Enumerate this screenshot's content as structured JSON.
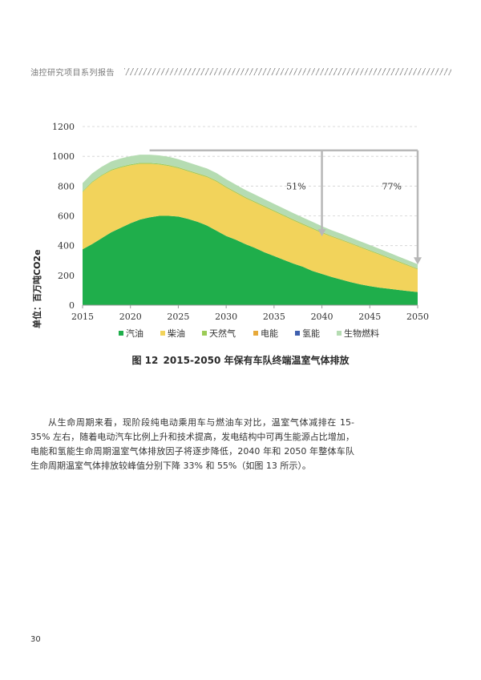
{
  "header": {
    "title": "油控研究项目系列报告"
  },
  "figure": {
    "caption_label": "图 12",
    "caption_title": "2015-2050 年保有车队终端温室气体排放"
  },
  "chart_data": {
    "type": "area",
    "stacked": true,
    "ylabel": "单位：百万吨CO2e",
    "ylim": [
      0,
      1200
    ],
    "yticks": [
      "0",
      "200",
      "400",
      "600",
      "800",
      "1000",
      "1200"
    ],
    "xlim": [
      2015,
      2050
    ],
    "xticks": [
      "2015",
      "2020",
      "2025",
      "2030",
      "2035",
      "2040",
      "2045",
      "2050"
    ],
    "grid": "horizontal dashed",
    "legend_position": "bottom",
    "x": [
      2015,
      2016,
      2017,
      2018,
      2019,
      2020,
      2021,
      2022,
      2023,
      2024,
      2025,
      2026,
      2027,
      2028,
      2029,
      2030,
      2031,
      2032,
      2033,
      2034,
      2035,
      2036,
      2037,
      2038,
      2039,
      2040,
      2041,
      2042,
      2043,
      2044,
      2045,
      2046,
      2047,
      2048,
      2049,
      2050
    ],
    "series": [
      {
        "name": "汽油",
        "color": "#1fae4b",
        "values": [
          375,
          410,
          450,
          490,
          520,
          550,
          575,
          590,
          600,
          600,
          595,
          580,
          560,
          535,
          500,
          465,
          440,
          410,
          385,
          355,
          330,
          305,
          280,
          258,
          230,
          210,
          190,
          172,
          155,
          140,
          128,
          118,
          110,
          102,
          95,
          88
        ]
      },
      {
        "name": "柴油",
        "color": "#f2d35b",
        "values": [
          385,
          415,
          420,
          415,
          405,
          390,
          375,
          360,
          345,
          335,
          325,
          320,
          320,
          325,
          330,
          325,
          315,
          310,
          305,
          305,
          300,
          295,
          290,
          283,
          283,
          275,
          270,
          265,
          258,
          248,
          236,
          222,
          205,
          188,
          170,
          152
        ]
      },
      {
        "name": "天然气",
        "color": "#9ccb57",
        "values": [
          5,
          5,
          5,
          6,
          6,
          6,
          6,
          6,
          6,
          6,
          6,
          6,
          6,
          6,
          6,
          6,
          6,
          6,
          6,
          6,
          6,
          6,
          6,
          6,
          6,
          6,
          5,
          5,
          5,
          5,
          5,
          5,
          5,
          5,
          5,
          5
        ]
      },
      {
        "name": "电能",
        "color": "#e7a93a",
        "values": [
          0,
          0,
          0,
          0,
          0,
          0,
          0,
          0,
          0,
          1,
          1,
          1,
          1,
          1,
          1,
          1,
          1,
          1,
          1,
          1,
          1,
          1,
          1,
          1,
          1,
          1,
          1,
          1,
          1,
          1,
          1,
          1,
          1,
          1,
          1,
          1
        ]
      },
      {
        "name": "氢能",
        "color": "#3e5fae",
        "values": [
          0,
          0,
          0,
          0,
          0,
          0,
          0,
          0,
          0,
          0,
          0,
          0,
          0,
          0,
          0,
          0,
          0,
          0,
          0,
          0,
          0,
          0,
          0,
          0,
          0,
          0,
          0,
          0,
          0,
          0,
          0,
          0,
          0,
          0,
          0,
          0
        ]
      },
      {
        "name": "生物燃料",
        "color": "#b5dcb2",
        "values": [
          55,
          55,
          55,
          55,
          55,
          55,
          55,
          55,
          55,
          55,
          54,
          53,
          52,
          51,
          50,
          49,
          48,
          47,
          46,
          45,
          44,
          43,
          42,
          41,
          40,
          39,
          38,
          37,
          36,
          35,
          34,
          33,
          32,
          31,
          30,
          29
        ]
      }
    ],
    "annotations": [
      {
        "text": "51%",
        "x": 2040,
        "y": 462,
        "from_y": 1040
      },
      {
        "text": "77%",
        "x": 2050,
        "y": 273,
        "from_y": 1040
      }
    ]
  },
  "body": {
    "paragraph": "从生命周期来看，现阶段纯电动乘用车与燃油车对比，温室气体减排在 15-35% 左右，随着电动汽车比例上升和技术提高，发电结构中可再生能源占比增加，电能和氢能生命周期温室气体排放因子将逐步降低，2040 年和 2050 年整体车队生命周期温室气体排放较峰值分别下降 33% 和 55%（如图 13 所示）。"
  },
  "footer": {
    "page_number": "30"
  }
}
